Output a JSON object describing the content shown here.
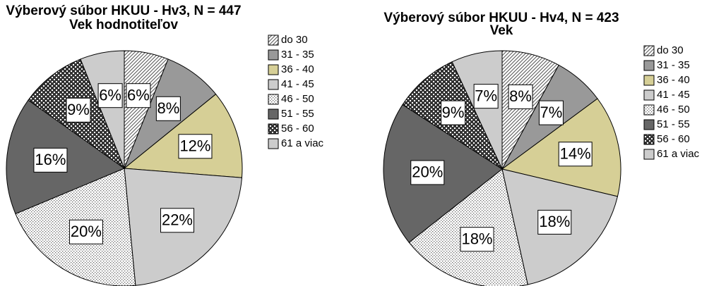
{
  "chart_data": [
    {
      "type": "pie",
      "title": "Výberový súbor HKUU - Hv3, N = 447",
      "subtitle": "Vek hodnotiteľov",
      "categories": [
        "do 30",
        "31 - 35",
        "36 - 40",
        "41 - 45",
        "46 - 50",
        "51 - 55",
        "56 - 60",
        "61 a viac"
      ],
      "values": [
        6,
        8,
        12,
        22,
        20,
        16,
        9,
        6
      ],
      "value_labels": [
        "6%",
        "8%",
        "12%",
        "22%",
        "20%",
        "16%",
        "9%",
        "6%"
      ],
      "colors": [
        "#ffffff",
        "#999999",
        "#d6cf96",
        "#cccccc",
        "#ffffff",
        "#666666",
        "#333333",
        "#cccccc"
      ],
      "patterns": [
        "diagonal",
        "solid",
        "solid",
        "solid",
        "dots",
        "solid",
        "checker",
        "solid"
      ]
    },
    {
      "type": "pie",
      "title": "Výberový súbor HKUU - Hv4, N = 423",
      "subtitle": "Vek",
      "categories": [
        "do 30",
        "31 - 35",
        "36 - 40",
        "41 - 45",
        "46 - 50",
        "51 - 55",
        "56 - 60",
        "61 a viac"
      ],
      "values": [
        8,
        7,
        14,
        18,
        18,
        20,
        9,
        7
      ],
      "value_labels": [
        "8%",
        "7%",
        "14%",
        "18%",
        "18%",
        "20%",
        "9%",
        "7%"
      ],
      "colors": [
        "#ffffff",
        "#999999",
        "#d6cf96",
        "#cccccc",
        "#ffffff",
        "#666666",
        "#333333",
        "#cccccc"
      ],
      "patterns": [
        "diagonal",
        "solid",
        "solid",
        "solid",
        "dots",
        "solid",
        "checker",
        "solid"
      ]
    }
  ]
}
